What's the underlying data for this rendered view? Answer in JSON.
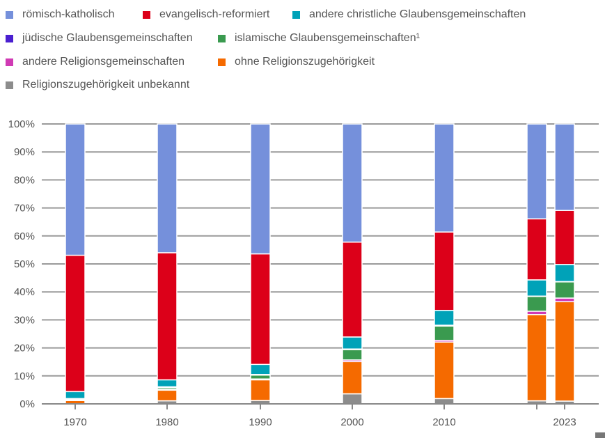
{
  "chart_data": {
    "type": "bar",
    "stacked": true,
    "title": "",
    "xlabel": "",
    "ylabel": "",
    "ylim": [
      0,
      100
    ],
    "yticks": [
      "0%",
      "10%",
      "20%",
      "30%",
      "40%",
      "50%",
      "60%",
      "70%",
      "80%",
      "90%",
      "100%"
    ],
    "grid": true,
    "legend_position": "top",
    "categories": [
      "1970",
      "1980",
      "1990",
      "2000",
      "2010",
      "",
      "2023"
    ],
    "series": [
      {
        "name": "Religionszugehörigkeit unbekannt",
        "color": "#8c8c8c",
        "values": [
          0,
          1.1,
          1.2,
          3.6,
          1.9,
          1.1,
          1.0
        ]
      },
      {
        "name": "ohne Religionszugehörigkeit",
        "color": "#f56a00",
        "values": [
          1.2,
          3.8,
          7.4,
          11.5,
          20.2,
          30.8,
          35.5
        ]
      },
      {
        "name": "andere Religionsgemeinschaften",
        "color": "#d03ab4",
        "values": [
          0.2,
          0.3,
          0.3,
          0.6,
          0.6,
          1.2,
          1.3
        ]
      },
      {
        "name": "islamische Glaubensgemeinschaften¹",
        "color": "#3a9a4f",
        "values": [
          0.2,
          0.6,
          1.4,
          3.7,
          5.1,
          5.3,
          5.8
        ]
      },
      {
        "name": "jüdische Glaubensgemeinschaften",
        "color": "#4a1fd0",
        "values": [
          0.3,
          0.3,
          0.2,
          0.2,
          0.3,
          0.1,
          0.1
        ]
      },
      {
        "name": "andere christliche Glaubensgemeinschaften",
        "color": "#00a2b8",
        "values": [
          2.5,
          2.5,
          3.6,
          4.3,
          5.3,
          5.8,
          6.1
        ]
      },
      {
        "name": "evangelisch-reformiert",
        "color": "#dc0019",
        "values": [
          48.7,
          45.4,
          39.5,
          33.9,
          28.0,
          21.8,
          19.3
        ]
      },
      {
        "name": "römisch-katholisch",
        "color": "#7590db",
        "values": [
          46.9,
          46.0,
          46.4,
          42.2,
          38.6,
          33.9,
          30.9
        ]
      }
    ]
  }
}
